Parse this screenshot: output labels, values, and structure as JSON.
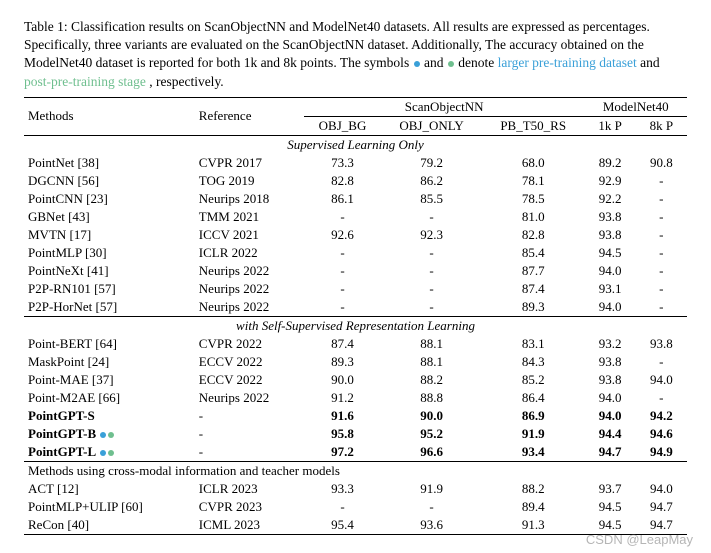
{
  "caption": {
    "prefix": "Table 1: Classification results on ScanObjectNN and ModelNet40 datasets. All results are expressed as percentages. Specifically, three variants are evaluated on the ScanObjectNN dataset. Additionally, The accuracy obtained on the ModelNet40 dataset is reported for both 1k and 8k points. The symbols ",
    "blue_dot_word": " and ",
    "green_dot_word": " denote ",
    "larger_text": "larger pre-training dataset",
    "and_text": " and ",
    "post_text": "post-pre-training stage",
    "suffix": ", respectively."
  },
  "headers": {
    "methods": "Methods",
    "reference": "Reference",
    "scan": "ScanObjectNN",
    "modelnet": "ModelNet40",
    "sub": [
      "OBJ_BG",
      "OBJ_ONLY",
      "PB_T50_RS",
      "1k P",
      "8k P"
    ]
  },
  "sections": [
    {
      "title": "Supervised Learning Only",
      "rows": [
        {
          "method": "PointNet [38]",
          "ref": "CVPR 2017",
          "v": [
            "73.3",
            "79.2",
            "68.0",
            "89.2",
            "90.8"
          ]
        },
        {
          "method": "DGCNN [56]",
          "ref": "TOG 2019",
          "v": [
            "82.8",
            "86.2",
            "78.1",
            "92.9",
            "-"
          ]
        },
        {
          "method": "PointCNN [23]",
          "ref": "Neurips 2018",
          "v": [
            "86.1",
            "85.5",
            "78.5",
            "92.2",
            "-"
          ]
        },
        {
          "method": "GBNet [43]",
          "ref": "TMM 2021",
          "v": [
            "-",
            "-",
            "81.0",
            "93.8",
            "-"
          ]
        },
        {
          "method": "MVTN [17]",
          "ref": "ICCV 2021",
          "v": [
            "92.6",
            "92.3",
            "82.8",
            "93.8",
            "-"
          ]
        },
        {
          "method": "PointMLP [30]",
          "ref": "ICLR 2022",
          "v": [
            "-",
            "-",
            "85.4",
            "94.5",
            "-"
          ]
        },
        {
          "method": "PointNeXt [41]",
          "ref": "Neurips 2022",
          "v": [
            "-",
            "-",
            "87.7",
            "94.0",
            "-"
          ]
        },
        {
          "method": "P2P-RN101 [57]",
          "ref": "Neurips 2022",
          "v": [
            "-",
            "-",
            "87.4",
            "93.1",
            "-"
          ]
        },
        {
          "method": "P2P-HorNet [57]",
          "ref": "Neurips 2022",
          "v": [
            "-",
            "-",
            "89.3",
            "94.0",
            "-"
          ]
        }
      ]
    },
    {
      "title": "with Self-Supervised Representation Learning",
      "rows": [
        {
          "method": "Point-BERT [64]",
          "ref": "CVPR 2022",
          "v": [
            "87.4",
            "88.1",
            "83.1",
            "93.2",
            "93.8"
          ]
        },
        {
          "method": "MaskPoint [24]",
          "ref": "ECCV 2022",
          "v": [
            "89.3",
            "88.1",
            "84.3",
            "93.8",
            "-"
          ]
        },
        {
          "method": "Point-MAE [37]",
          "ref": "ECCV 2022",
          "v": [
            "90.0",
            "88.2",
            "85.2",
            "93.8",
            "94.0"
          ]
        },
        {
          "method": "Point-M2AE [66]",
          "ref": "Neurips 2022",
          "v": [
            "91.2",
            "88.8",
            "86.4",
            "94.0",
            "-"
          ]
        },
        {
          "method": "PointGPT-S",
          "ref": "-",
          "v": [
            "91.6",
            "90.0",
            "86.9",
            "94.0",
            "94.2"
          ],
          "bold": true
        },
        {
          "method": "PointGPT-B",
          "ref": "-",
          "v": [
            "95.8",
            "95.2",
            "91.9",
            "94.4",
            "94.6"
          ],
          "bold": true,
          "dots": true
        },
        {
          "method": "PointGPT-L",
          "ref": "-",
          "v": [
            "97.2",
            "96.6",
            "93.4",
            "94.7",
            "94.9"
          ],
          "bold": true,
          "dots": true
        }
      ]
    },
    {
      "title": "Methods using cross-modal information and teacher models",
      "left": true,
      "rows": [
        {
          "method": "ACT [12]",
          "ref": "ICLR 2023",
          "v": [
            "93.3",
            "91.9",
            "88.2",
            "93.7",
            "94.0"
          ]
        },
        {
          "method": "PointMLP+ULIP [60]",
          "ref": "CVPR 2023",
          "v": [
            "-",
            "-",
            "89.4",
            "94.5",
            "94.7"
          ]
        },
        {
          "method": "ReCon [40]",
          "ref": "ICML 2023",
          "v": [
            "95.4",
            "93.6",
            "91.3",
            "94.5",
            "94.7"
          ]
        }
      ]
    }
  ],
  "watermark": "CSDN @LeapMay"
}
